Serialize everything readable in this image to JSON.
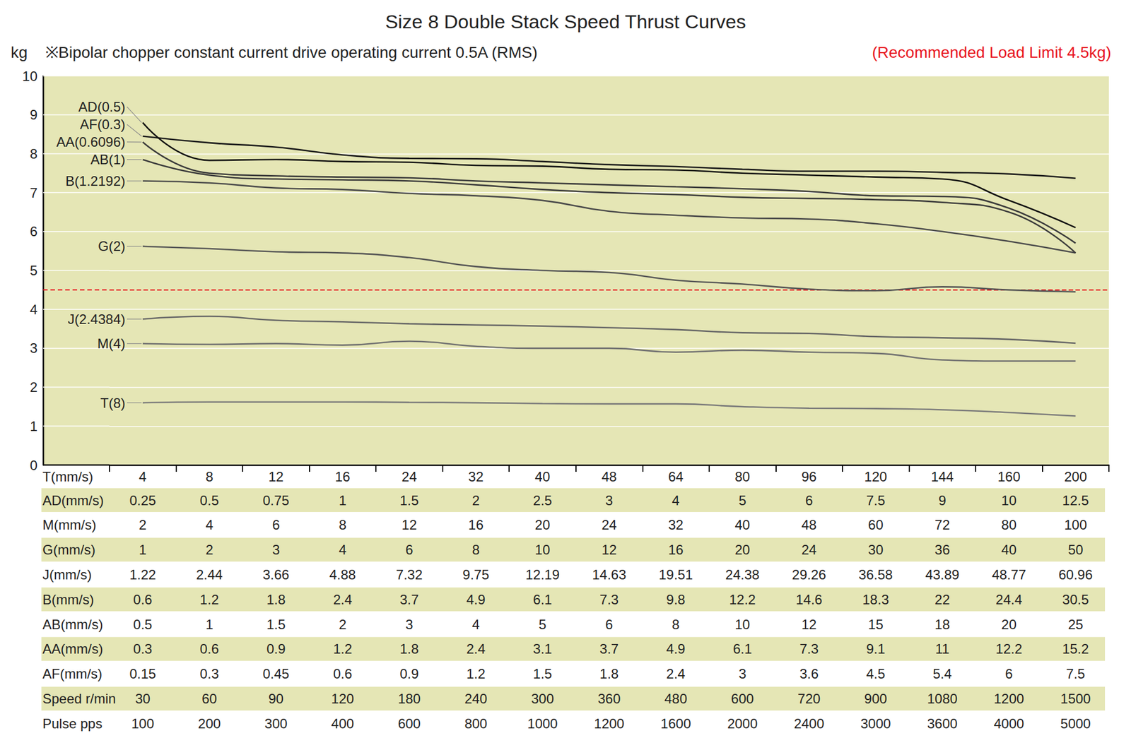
{
  "chart_data": {
    "type": "line",
    "title": "Size 8 Double Stack Speed Thrust Curves",
    "subtitle": "※Bipolar chopper constant current drive operating current 0.5A (RMS)",
    "y_label": "kg",
    "x_label": "T(mm/s)",
    "annotation": {
      "text": "(Recommended Load Limit 4.5kg)",
      "value": 4.5,
      "color": "#e8141e",
      "line_style": "dashed"
    },
    "categories": [
      4,
      8,
      12,
      16,
      24,
      32,
      40,
      48,
      64,
      80,
      96,
      120,
      144,
      160,
      200
    ],
    "series": [
      {
        "name": "AD(0.5)",
        "color": "#111111",
        "values": [
          8.8,
          7.83,
          7.85,
          7.8,
          7.78,
          7.7,
          7.68,
          7.6,
          7.58,
          7.5,
          7.45,
          7.4,
          7.35,
          6.8,
          6.1
        ]
      },
      {
        "name": "AF(0.3)",
        "color": "#1a1a1a",
        "values": [
          8.45,
          8.28,
          8.17,
          7.97,
          7.88,
          7.87,
          7.8,
          7.72,
          7.67,
          7.6,
          7.55,
          7.55,
          7.52,
          7.48,
          7.37
        ]
      },
      {
        "name": "AA(0.6096)",
        "color": "#3a3a3a",
        "values": [
          8.3,
          7.5,
          7.43,
          7.4,
          7.38,
          7.3,
          7.25,
          7.2,
          7.15,
          7.1,
          7.03,
          6.92,
          6.9,
          6.6,
          5.7
        ]
      },
      {
        "name": "AB(1)",
        "color": "#3a3a3a",
        "values": [
          7.85,
          7.45,
          7.35,
          7.33,
          7.3,
          7.2,
          7.08,
          7.0,
          6.95,
          6.88,
          6.85,
          6.82,
          6.75,
          6.5,
          5.45
        ]
      },
      {
        "name": "B(1.2192)",
        "color": "#4a4a4a",
        "values": [
          7.3,
          7.25,
          7.12,
          7.08,
          6.98,
          6.92,
          6.8,
          6.52,
          6.42,
          6.35,
          6.32,
          6.2,
          6.0,
          5.75,
          5.45
        ]
      },
      {
        "name": "G(2)",
        "color": "#555555",
        "values": [
          5.62,
          5.56,
          5.48,
          5.45,
          5.33,
          5.1,
          5.0,
          4.95,
          4.75,
          4.65,
          4.52,
          4.48,
          4.58,
          4.5,
          4.45
        ]
      },
      {
        "name": "J(2.4384)",
        "color": "#666666",
        "values": [
          3.75,
          3.82,
          3.72,
          3.68,
          3.63,
          3.6,
          3.57,
          3.53,
          3.48,
          3.4,
          3.38,
          3.3,
          3.27,
          3.23,
          3.13
        ]
      },
      {
        "name": "M(4)",
        "color": "#707070",
        "values": [
          3.12,
          3.1,
          3.12,
          3.08,
          3.18,
          3.05,
          3.0,
          3.0,
          2.9,
          2.95,
          2.9,
          2.87,
          2.7,
          2.67,
          2.67
        ]
      },
      {
        "name": "T(8)",
        "color": "#7a7a7a",
        "values": [
          1.6,
          1.62,
          1.62,
          1.62,
          1.61,
          1.6,
          1.58,
          1.57,
          1.57,
          1.5,
          1.46,
          1.45,
          1.42,
          1.35,
          1.26
        ]
      }
    ],
    "ylim": [
      0,
      10
    ],
    "yticks": [
      0,
      1,
      2,
      3,
      4,
      5,
      6,
      7,
      8,
      9,
      10
    ],
    "grid": true,
    "table": {
      "rows": [
        {
          "label": "AD(mm/s)",
          "values": [
            0.25,
            0.5,
            0.75,
            1,
            1.5,
            2,
            2.5,
            3,
            4,
            5,
            6,
            7.5,
            9,
            10,
            12.5
          ]
        },
        {
          "label": "M(mm/s)",
          "values": [
            2,
            4,
            6,
            8,
            12,
            16,
            20,
            24,
            32,
            40,
            48,
            60,
            72,
            80,
            100
          ]
        },
        {
          "label": "G(mm/s)",
          "values": [
            1,
            2,
            3,
            4,
            6,
            8,
            10,
            12,
            16,
            20,
            24,
            30,
            36,
            40,
            50
          ]
        },
        {
          "label": "J(mm/s)",
          "values": [
            1.22,
            2.44,
            3.66,
            4.88,
            7.32,
            9.75,
            12.19,
            14.63,
            19.51,
            24.38,
            29.26,
            36.58,
            43.89,
            48.77,
            60.96
          ]
        },
        {
          "label": "B(mm/s)",
          "values": [
            0.6,
            1.2,
            1.8,
            2.4,
            3.7,
            4.9,
            6.1,
            7.3,
            9.8,
            12.2,
            14.6,
            18.3,
            22,
            24.4,
            30.5
          ]
        },
        {
          "label": "AB(mm/s)",
          "values": [
            0.5,
            1,
            1.5,
            2,
            3,
            4,
            5,
            6,
            8,
            10,
            12,
            15,
            18,
            20,
            25
          ]
        },
        {
          "label": "AA(mm/s)",
          "values": [
            0.3,
            0.6,
            0.9,
            1.2,
            1.8,
            2.4,
            3.1,
            3.7,
            4.9,
            6.1,
            7.3,
            9.1,
            11,
            12.2,
            15.2
          ]
        },
        {
          "label": "AF(mm/s)",
          "values": [
            0.15,
            0.3,
            0.45,
            0.6,
            0.9,
            1.2,
            1.5,
            1.8,
            2.4,
            3,
            3.6,
            4.5,
            5.4,
            6,
            7.5
          ]
        },
        {
          "label": "Speed r/min",
          "values": [
            30,
            60,
            90,
            120,
            180,
            240,
            300,
            360,
            480,
            600,
            720,
            900,
            1080,
            1200,
            1500
          ]
        },
        {
          "label": "Pulse pps",
          "values": [
            100,
            200,
            300,
            400,
            600,
            800,
            1000,
            1200,
            1600,
            2000,
            2400,
            3000,
            3600,
            4000,
            5000
          ]
        }
      ]
    }
  }
}
